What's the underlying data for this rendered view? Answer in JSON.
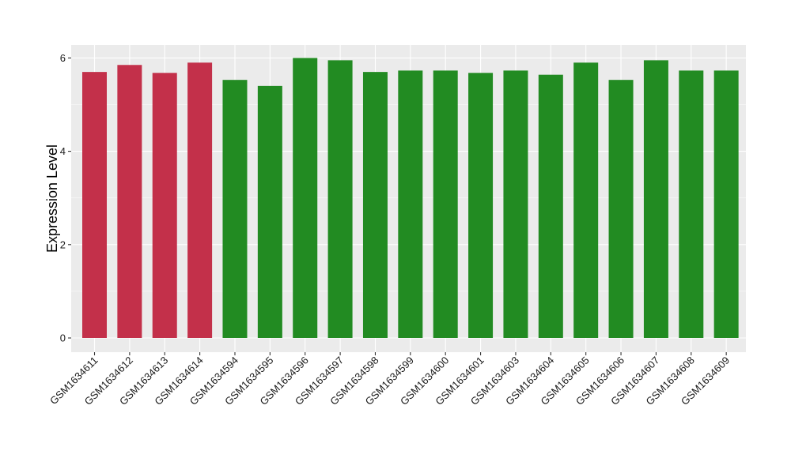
{
  "chart_data": {
    "type": "bar",
    "title": "",
    "xlabel": "",
    "ylabel": "Expression Level",
    "ylim": [
      0,
      6.3
    ],
    "yticks": [
      0,
      2,
      4,
      6
    ],
    "grid": true,
    "legend": "none",
    "categories": [
      "GSM1634611",
      "GSM1634612",
      "GSM1634613",
      "GSM1634614",
      "GSM1634594",
      "GSM1634595",
      "GSM1634596",
      "GSM1634597",
      "GSM1634598",
      "GSM1634599",
      "GSM1634600",
      "GSM1634601",
      "GSM1634603",
      "GSM1634604",
      "GSM1634605",
      "GSM1634606",
      "GSM1634607",
      "GSM1634608",
      "GSM1634609"
    ],
    "values": [
      5.7,
      5.85,
      5.68,
      5.9,
      5.53,
      5.4,
      6.0,
      5.95,
      5.7,
      5.73,
      5.73,
      5.68,
      5.73,
      5.64,
      5.9,
      5.53,
      5.95,
      5.73,
      5.73
    ],
    "groups": [
      "red",
      "red",
      "red",
      "red",
      "green",
      "green",
      "green",
      "green",
      "green",
      "green",
      "green",
      "green",
      "green",
      "green",
      "green",
      "green",
      "green",
      "green",
      "green"
    ],
    "colors": {
      "red": "#c3304a",
      "green": "#228b22",
      "panel": "#ebebeb",
      "grid": "#ffffff"
    }
  }
}
